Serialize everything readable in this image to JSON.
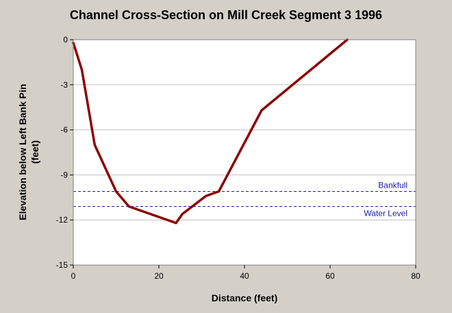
{
  "chart_data": {
    "type": "line",
    "title": "Channel Cross-Section on Mill Creek Segment 3 1996",
    "xlabel": "Distance (feet)",
    "ylabel_line1": "Elevation below Left Bank Pin",
    "ylabel_line2": "(feet)",
    "xlim": [
      0,
      80
    ],
    "ylim": [
      -15,
      0
    ],
    "xticks": [
      0,
      20,
      40,
      60,
      80
    ],
    "yticks": [
      0,
      -3,
      -6,
      -9,
      -12,
      -15
    ],
    "grid": true,
    "series": [
      {
        "color": "#8b0000",
        "x": [
          0,
          2,
          5,
          10,
          13,
          24,
          25.5,
          31,
          34,
          44,
          64
        ],
        "y": [
          -0.2,
          -2.0,
          -7.0,
          -10.1,
          -11.1,
          -12.2,
          -11.6,
          -10.4,
          -10.1,
          -4.7,
          0
        ]
      }
    ],
    "reference_lines": [
      {
        "label": "Bankfull",
        "y": -10.1,
        "color": "#1a1aa8"
      },
      {
        "label": "Water Level",
        "y": -11.1,
        "color": "#1a1aa8"
      }
    ]
  }
}
